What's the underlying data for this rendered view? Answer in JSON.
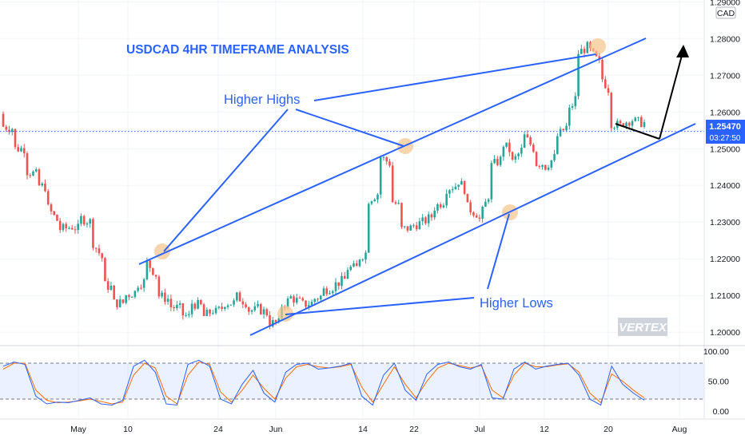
{
  "chart_data": [
    {
      "type": "candlestick",
      "title": "USDCAD 4HR TIMEFRAME ANALYSIS",
      "currency_label": "CAD",
      "y_ticks": [
        "1.29000",
        "1.28000",
        "1.27000",
        "1.26000",
        "1.25000",
        "1.24000",
        "1.23000",
        "1.22000",
        "1.21000",
        "1.20000"
      ],
      "ylim": [
        1.197,
        1.2905
      ],
      "x_ticks": [
        "May",
        "10",
        "24",
        "Jun",
        "14",
        "22",
        "Jul",
        "12",
        "20",
        "Aug"
      ],
      "last_price": "1.25470",
      "countdown": "03:27:50",
      "annotations": [
        "Higher Highs",
        "Higher Lows"
      ],
      "watermark": "VERTEX",
      "colors": {
        "up": "#26a69a",
        "down": "#ef5350",
        "annotation": "#2962ff",
        "highlight": "#f5c58a"
      },
      "price_path": [
        [
          1.2595,
          1.256
        ],
        [
          1.2555,
          1.25
        ],
        [
          1.25,
          1.244
        ],
        [
          1.243,
          1.24
        ],
        [
          1.2395,
          1.234
        ],
        [
          1.23,
          1.228
        ],
        [
          1.2285,
          1.229
        ],
        [
          1.228,
          1.231
        ],
        [
          1.23,
          1.225
        ],
        [
          1.22,
          1.213
        ],
        [
          1.212,
          1.208
        ],
        [
          1.208,
          1.21
        ],
        [
          1.211,
          1.213
        ],
        [
          1.214,
          1.219
        ],
        [
          1.215,
          1.21
        ],
        [
          1.209,
          1.207
        ],
        [
          1.2065,
          1.205
        ],
        [
          1.204,
          1.208
        ],
        [
          1.207,
          1.204
        ],
        [
          1.206,
          1.205
        ],
        [
          1.207,
          1.208
        ],
        [
          1.208,
          1.21
        ],
        [
          1.208,
          1.206
        ],
        [
          1.206,
          1.2065
        ],
        [
          1.205,
          1.2025
        ],
        [
          1.2025,
          1.207
        ],
        [
          1.209,
          1.2095
        ],
        [
          1.208,
          1.2075
        ],
        [
          1.208,
          1.209
        ],
        [
          1.21,
          1.2115
        ],
        [
          1.2125,
          1.213
        ],
        [
          1.2145,
          1.2175
        ],
        [
          1.2175,
          1.22
        ],
        [
          1.222,
          1.236
        ],
        [
          1.238,
          1.248
        ],
        [
          1.246,
          1.236
        ],
        [
          1.234,
          1.228
        ],
        [
          1.2285,
          1.229
        ],
        [
          1.23,
          1.23
        ],
        [
          1.232,
          1.234
        ],
        [
          1.236,
          1.239
        ],
        [
          1.24,
          1.242
        ],
        [
          1.238,
          1.234
        ],
        [
          1.232,
          1.23
        ],
        [
          1.238,
          1.245
        ],
        [
          1.247,
          1.252
        ],
        [
          1.249,
          1.246
        ],
        [
          1.25,
          1.254
        ],
        [
          1.25,
          1.246
        ],
        [
          1.246,
          1.245
        ],
        [
          1.248,
          1.253
        ],
        [
          1.256,
          1.259
        ],
        [
          1.265,
          1.276
        ],
        [
          1.278,
          1.277
        ],
        [
          1.273,
          1.27
        ],
        [
          1.265,
          1.257
        ],
        [
          1.256,
          1.257
        ],
        [
          1.258,
          1.2575
        ],
        [
          1.257,
          1.255
        ]
      ],
      "oscillator": {
        "y_ticks": [
          "100.00",
          "50.00",
          "0.00"
        ],
        "bands": [
          80,
          20
        ],
        "k_values": [
          75,
          82,
          78,
          25,
          12,
          15,
          14,
          18,
          22,
          12,
          10,
          18,
          75,
          85,
          65,
          12,
          10,
          78,
          85,
          75,
          20,
          12,
          45,
          68,
          30,
          15,
          65,
          78,
          80,
          70,
          72,
          75,
          80,
          25,
          10,
          60,
          80,
          35,
          18,
          62,
          78,
          82,
          74,
          70,
          78,
          22,
          20,
          70,
          82,
          70,
          75,
          78,
          80,
          60,
          20,
          10,
          75,
          45,
          30,
          18
        ],
        "d_values": [
          70,
          80,
          80,
          35,
          18,
          14,
          15,
          17,
          20,
          16,
          12,
          15,
          60,
          80,
          72,
          25,
          12,
          60,
          82,
          78,
          32,
          15,
          35,
          60,
          38,
          20,
          55,
          74,
          78,
          74,
          72,
          74,
          78,
          40,
          15,
          45,
          74,
          45,
          22,
          50,
          72,
          80,
          76,
          72,
          76,
          35,
          22,
          60,
          80,
          74,
          74,
          77,
          79,
          65,
          30,
          14,
          62,
          50,
          35,
          22
        ]
      }
    }
  ]
}
